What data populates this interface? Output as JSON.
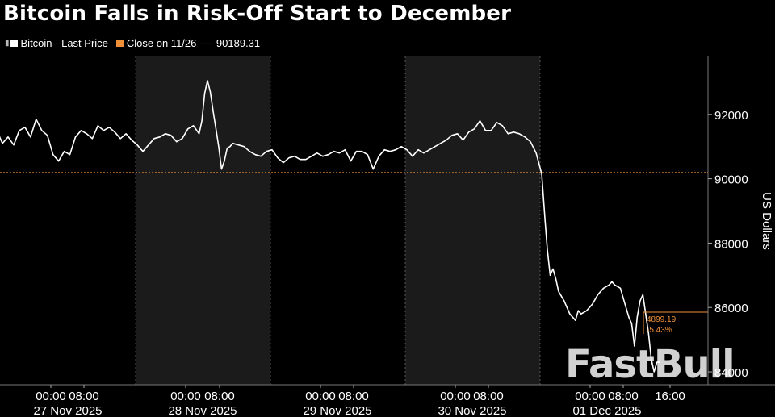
{
  "header": {
    "title": "Bitcoin Falls in Risk-Off Start to December"
  },
  "legend": {
    "series_label": "Bitcoin - Last Price",
    "close_label": "Close on 11/26 ---- 90189.31"
  },
  "watermark": "FastBull",
  "colors": {
    "background": "#000000",
    "shade": "#1b1b1b",
    "series": "#ffffff",
    "close_line": "#f0913a",
    "axis_text": "#ffffff"
  },
  "chart_data": {
    "type": "line",
    "title": "Bitcoin Falls in Risk-Off Start to December",
    "ylabel": "US Dollars",
    "ylim": [
      83600,
      93800
    ],
    "y_ticks": [
      84000,
      86000,
      88000,
      90000,
      92000
    ],
    "y_tick_labels": [
      "84000",
      "86000",
      "88000",
      "90000",
      "92000"
    ],
    "x_range_hours": [
      -6,
      57
    ],
    "x_tick_labels": [
      {
        "t": "00:00",
        "d": "27 Nov 2025"
      },
      {
        "t": "08:00",
        "d": ""
      },
      {
        "t": "00:00",
        "d": "28 Nov 2025"
      },
      {
        "t": "08:00",
        "d": ""
      },
      {
        "t": "00:00",
        "d": "29 Nov 2025"
      },
      {
        "t": "08:00",
        "d": ""
      },
      {
        "t": "00:00",
        "d": "30 Nov 2025"
      },
      {
        "t": "08:00",
        "d": ""
      },
      {
        "t": "00:00",
        "d": "01 Dec 2025"
      },
      {
        "t": "08:00",
        "d": ""
      },
      {
        "t": "16:00",
        "d": ""
      }
    ],
    "day_labels": [
      "27 Nov 2025",
      "28 Nov 2025",
      "29 Nov 2025",
      "30 Nov 2025",
      "01 Dec 2025"
    ],
    "shaded_days": [
      "28 Nov 2025",
      "30 Nov 2025"
    ],
    "reference_line": {
      "label": "Close on 11/26",
      "value": 90189.31
    },
    "annotation": {
      "change": "4899.19",
      "pct": "-5.43%"
    },
    "series": [
      {
        "name": "Bitcoin - Last Price",
        "points": [
          [
            -6.0,
            90400
          ],
          [
            -5.0,
            90150
          ],
          [
            -4.0,
            90700
          ],
          [
            -3.0,
            90900
          ],
          [
            -2.5,
            91400
          ],
          [
            -2.0,
            91850
          ],
          [
            -1.5,
            91300
          ],
          [
            -1.0,
            91100
          ],
          [
            0.0,
            91300
          ],
          [
            1.0,
            91050
          ],
          [
            2.0,
            91500
          ],
          [
            3.0,
            91600
          ],
          [
            4.0,
            91300
          ],
          [
            5.0,
            91850
          ],
          [
            6.0,
            91500
          ],
          [
            7.0,
            91350
          ],
          [
            8.0,
            90750
          ],
          [
            9.0,
            90550
          ],
          [
            10.0,
            90850
          ],
          [
            11.0,
            90750
          ],
          [
            12.0,
            91300
          ],
          [
            13.0,
            91500
          ],
          [
            14.0,
            91400
          ],
          [
            15.0,
            91250
          ],
          [
            16.0,
            91650
          ],
          [
            17.0,
            91500
          ],
          [
            18.0,
            91600
          ],
          [
            19.0,
            91450
          ],
          [
            20.0,
            91250
          ],
          [
            21.0,
            91400
          ],
          [
            22.0,
            91200
          ],
          [
            23.0,
            91050
          ],
          [
            24.0,
            90850
          ],
          [
            25.0,
            91050
          ],
          [
            26.0,
            91250
          ],
          [
            27.0,
            91300
          ],
          [
            28.0,
            91400
          ],
          [
            29.0,
            91350
          ],
          [
            30.0,
            91150
          ],
          [
            31.0,
            91250
          ],
          [
            32.0,
            91550
          ],
          [
            33.0,
            91650
          ],
          [
            34.0,
            91400
          ],
          [
            34.5,
            91800
          ],
          [
            35.0,
            92650
          ],
          [
            35.5,
            93050
          ],
          [
            36.0,
            92700
          ],
          [
            36.5,
            92100
          ],
          [
            37.0,
            91550
          ],
          [
            37.5,
            91000
          ],
          [
            38.0,
            90300
          ],
          [
            38.5,
            90550
          ],
          [
            39.0,
            90950
          ],
          [
            39.5,
            91000
          ],
          [
            40.0,
            91100
          ],
          [
            41.0,
            91050
          ],
          [
            42.0,
            91000
          ],
          [
            43.0,
            90850
          ],
          [
            44.0,
            90750
          ],
          [
            45.0,
            90700
          ],
          [
            46.0,
            90850
          ],
          [
            47.0,
            90900
          ],
          [
            48.0,
            90650
          ],
          [
            49.0,
            90500
          ],
          [
            50.0,
            90650
          ],
          [
            51.0,
            90700
          ],
          [
            52.0,
            90600
          ],
          [
            53.0,
            90600
          ],
          [
            54.0,
            90700
          ],
          [
            55.0,
            90800
          ],
          [
            56.0,
            90700
          ],
          [
            57.0,
            90750
          ],
          [
            58.0,
            90850
          ],
          [
            59.0,
            90800
          ],
          [
            60.0,
            90900
          ],
          [
            61.0,
            90550
          ],
          [
            62.0,
            90850
          ],
          [
            63.0,
            90850
          ],
          [
            64.0,
            90750
          ],
          [
            65.0,
            90300
          ],
          [
            66.0,
            90700
          ],
          [
            67.0,
            90900
          ],
          [
            68.0,
            90850
          ],
          [
            69.0,
            90900
          ],
          [
            70.0,
            91000
          ],
          [
            71.0,
            90900
          ],
          [
            72.0,
            90700
          ],
          [
            73.0,
            90900
          ],
          [
            74.0,
            90800
          ],
          [
            75.0,
            90900
          ],
          [
            76.0,
            91000
          ],
          [
            77.0,
            91100
          ],
          [
            78.0,
            91200
          ],
          [
            79.0,
            91350
          ],
          [
            80.0,
            91400
          ],
          [
            81.0,
            91200
          ],
          [
            82.0,
            91450
          ],
          [
            83.0,
            91550
          ],
          [
            84.0,
            91800
          ],
          [
            85.0,
            91500
          ],
          [
            86.0,
            91500
          ],
          [
            87.0,
            91750
          ],
          [
            88.0,
            91650
          ],
          [
            89.0,
            91400
          ],
          [
            90.0,
            91450
          ],
          [
            91.0,
            91400
          ],
          [
            92.0,
            91300
          ],
          [
            93.0,
            91150
          ],
          [
            94.0,
            90800
          ],
          [
            95.0,
            90150
          ],
          [
            95.6,
            88700
          ],
          [
            96.0,
            87800
          ],
          [
            96.5,
            87000
          ],
          [
            97.0,
            87200
          ],
          [
            97.5,
            86900
          ],
          [
            98.0,
            86500
          ],
          [
            99.0,
            86200
          ],
          [
            100.0,
            85800
          ],
          [
            101.0,
            85600
          ],
          [
            101.5,
            85900
          ],
          [
            102.0,
            85800
          ],
          [
            103.0,
            85900
          ],
          [
            104.0,
            86100
          ],
          [
            105.0,
            86400
          ],
          [
            106.0,
            86600
          ],
          [
            107.0,
            86700
          ],
          [
            107.5,
            86800
          ],
          [
            108.0,
            86700
          ],
          [
            109.0,
            86600
          ],
          [
            109.5,
            86300
          ],
          [
            110.0,
            86000
          ],
          [
            110.5,
            85700
          ],
          [
            111.0,
            85500
          ],
          [
            111.5,
            84800
          ],
          [
            112.0,
            85700
          ],
          [
            112.5,
            86200
          ],
          [
            113.0,
            86400
          ],
          [
            113.5,
            85800
          ],
          [
            114.0,
            85200
          ],
          [
            114.5,
            84400
          ],
          [
            115.0,
            84000
          ],
          [
            115.5,
            84300
          ],
          [
            116.0,
            84300
          ]
        ]
      }
    ]
  }
}
